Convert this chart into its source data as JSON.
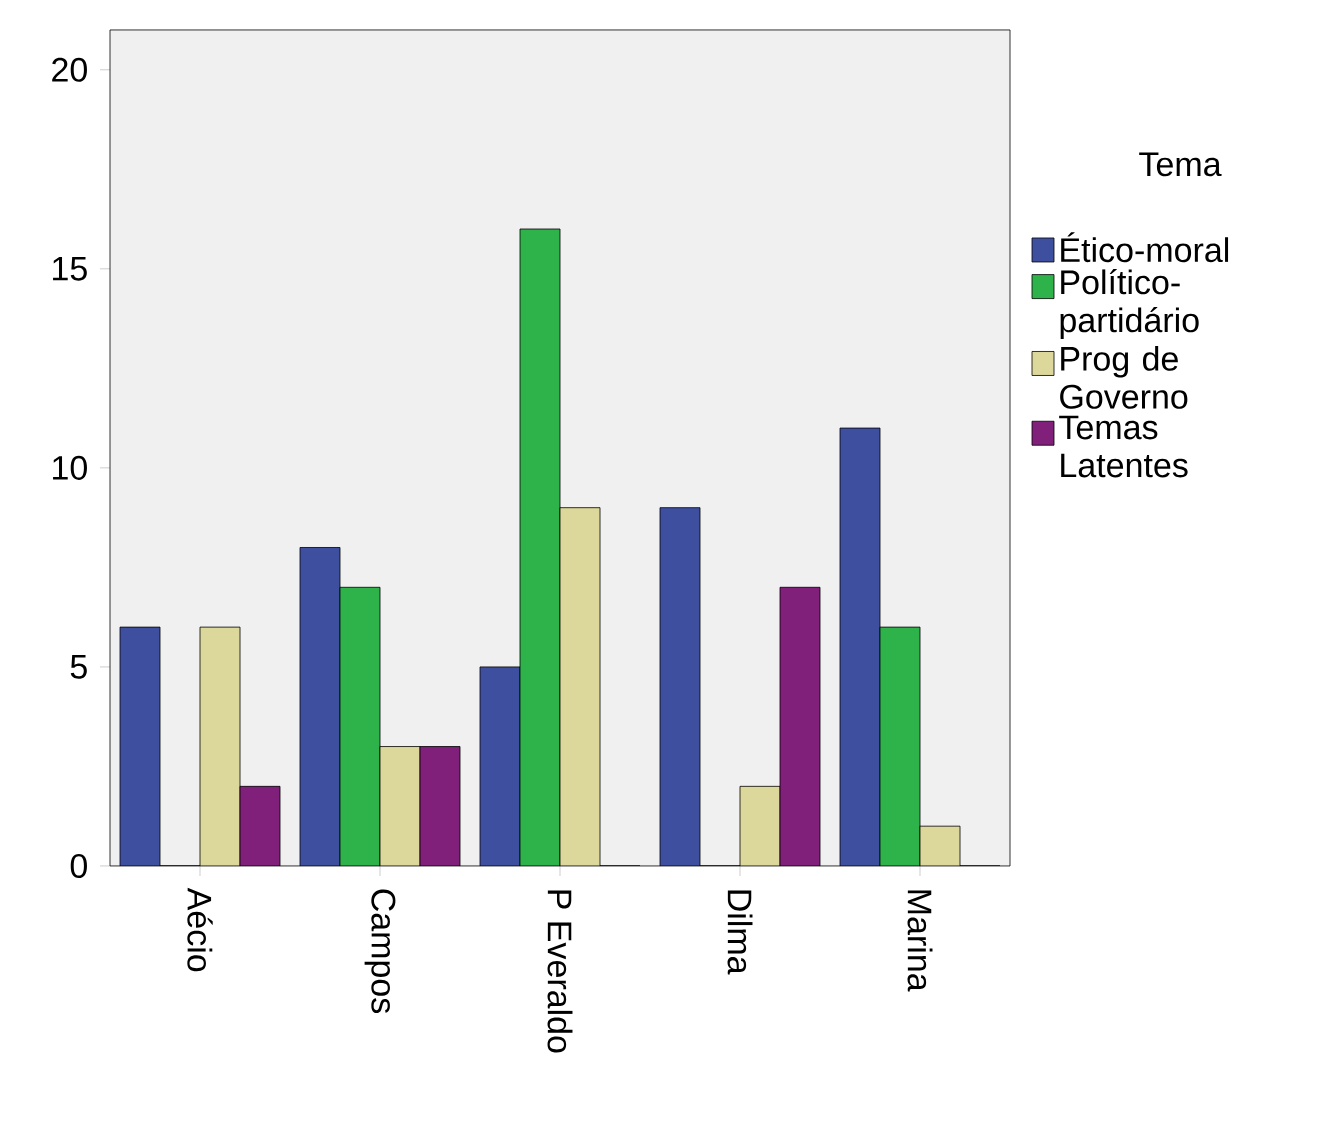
{
  "chart_data": {
    "type": "bar",
    "categories": [
      "Aécio",
      "Campos",
      "P Everaldo",
      "Dilma",
      "Marina"
    ],
    "legend_title": "Tema",
    "legend": "right",
    "series": [
      {
        "name": "Ético-moral",
        "color": "#3f4fa0",
        "values": [
          6,
          8,
          5,
          9,
          11
        ]
      },
      {
        "name": "Político-partidário",
        "color": "#2db34a",
        "values": [
          0,
          7,
          16,
          0,
          6
        ]
      },
      {
        "name": "Prog de Governo",
        "color": "#dcd79a",
        "values": [
          6,
          3,
          9,
          2,
          1
        ]
      },
      {
        "name": "Temas Latentes",
        "color": "#80207a",
        "values": [
          2,
          3,
          0,
          7,
          0
        ]
      }
    ],
    "ylim": [
      0,
      21
    ],
    "yticks": [
      0,
      5,
      10,
      15,
      20
    ]
  }
}
